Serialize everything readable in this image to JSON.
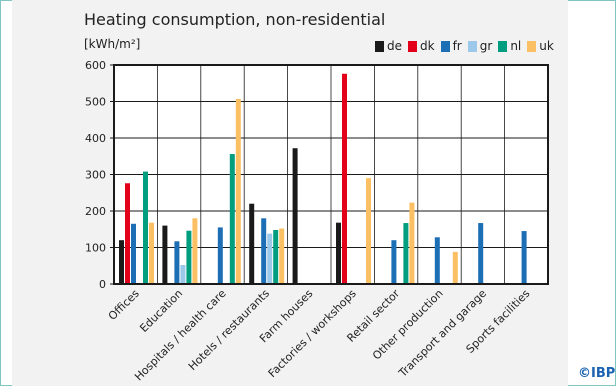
{
  "chart_data": {
    "type": "bar",
    "title": "Heating consumption, non-residential",
    "unit_label": "[kWh/m²]",
    "ylim": [
      0,
      600
    ],
    "yticks": [
      0,
      100,
      200,
      300,
      400,
      500,
      600
    ],
    "grid": true,
    "legend_position": "top-right",
    "categories": [
      "Offices",
      "Education",
      "Hospitals / health care",
      "Hotels / restaurants",
      "Farm houses",
      "Factories / workshops",
      "Retail sector",
      "Other production",
      "Transport and garage",
      "Sports facilities"
    ],
    "series": [
      {
        "name": "de",
        "color": "#1a1a1a",
        "values": [
          120,
          160,
          null,
          220,
          372,
          168,
          null,
          null,
          null,
          null
        ]
      },
      {
        "name": "dk",
        "color": "#e3001b",
        "values": [
          276,
          null,
          null,
          null,
          null,
          576,
          null,
          null,
          null,
          null
        ]
      },
      {
        "name": "fr",
        "color": "#1c6fb5",
        "values": [
          165,
          117,
          155,
          180,
          null,
          null,
          120,
          128,
          167,
          145
        ]
      },
      {
        "name": "gr",
        "color": "#9cc8ea",
        "values": [
          null,
          52,
          null,
          138,
          null,
          null,
          null,
          null,
          null,
          null
        ]
      },
      {
        "name": "nl",
        "color": "#009e7f",
        "values": [
          308,
          146,
          356,
          148,
          null,
          null,
          167,
          null,
          null,
          null
        ]
      },
      {
        "name": "uk",
        "color": "#fbc064",
        "values": [
          168,
          180,
          507,
          152,
          null,
          290,
          223,
          88,
          null,
          null
        ]
      }
    ]
  },
  "copyright": "©IBP"
}
